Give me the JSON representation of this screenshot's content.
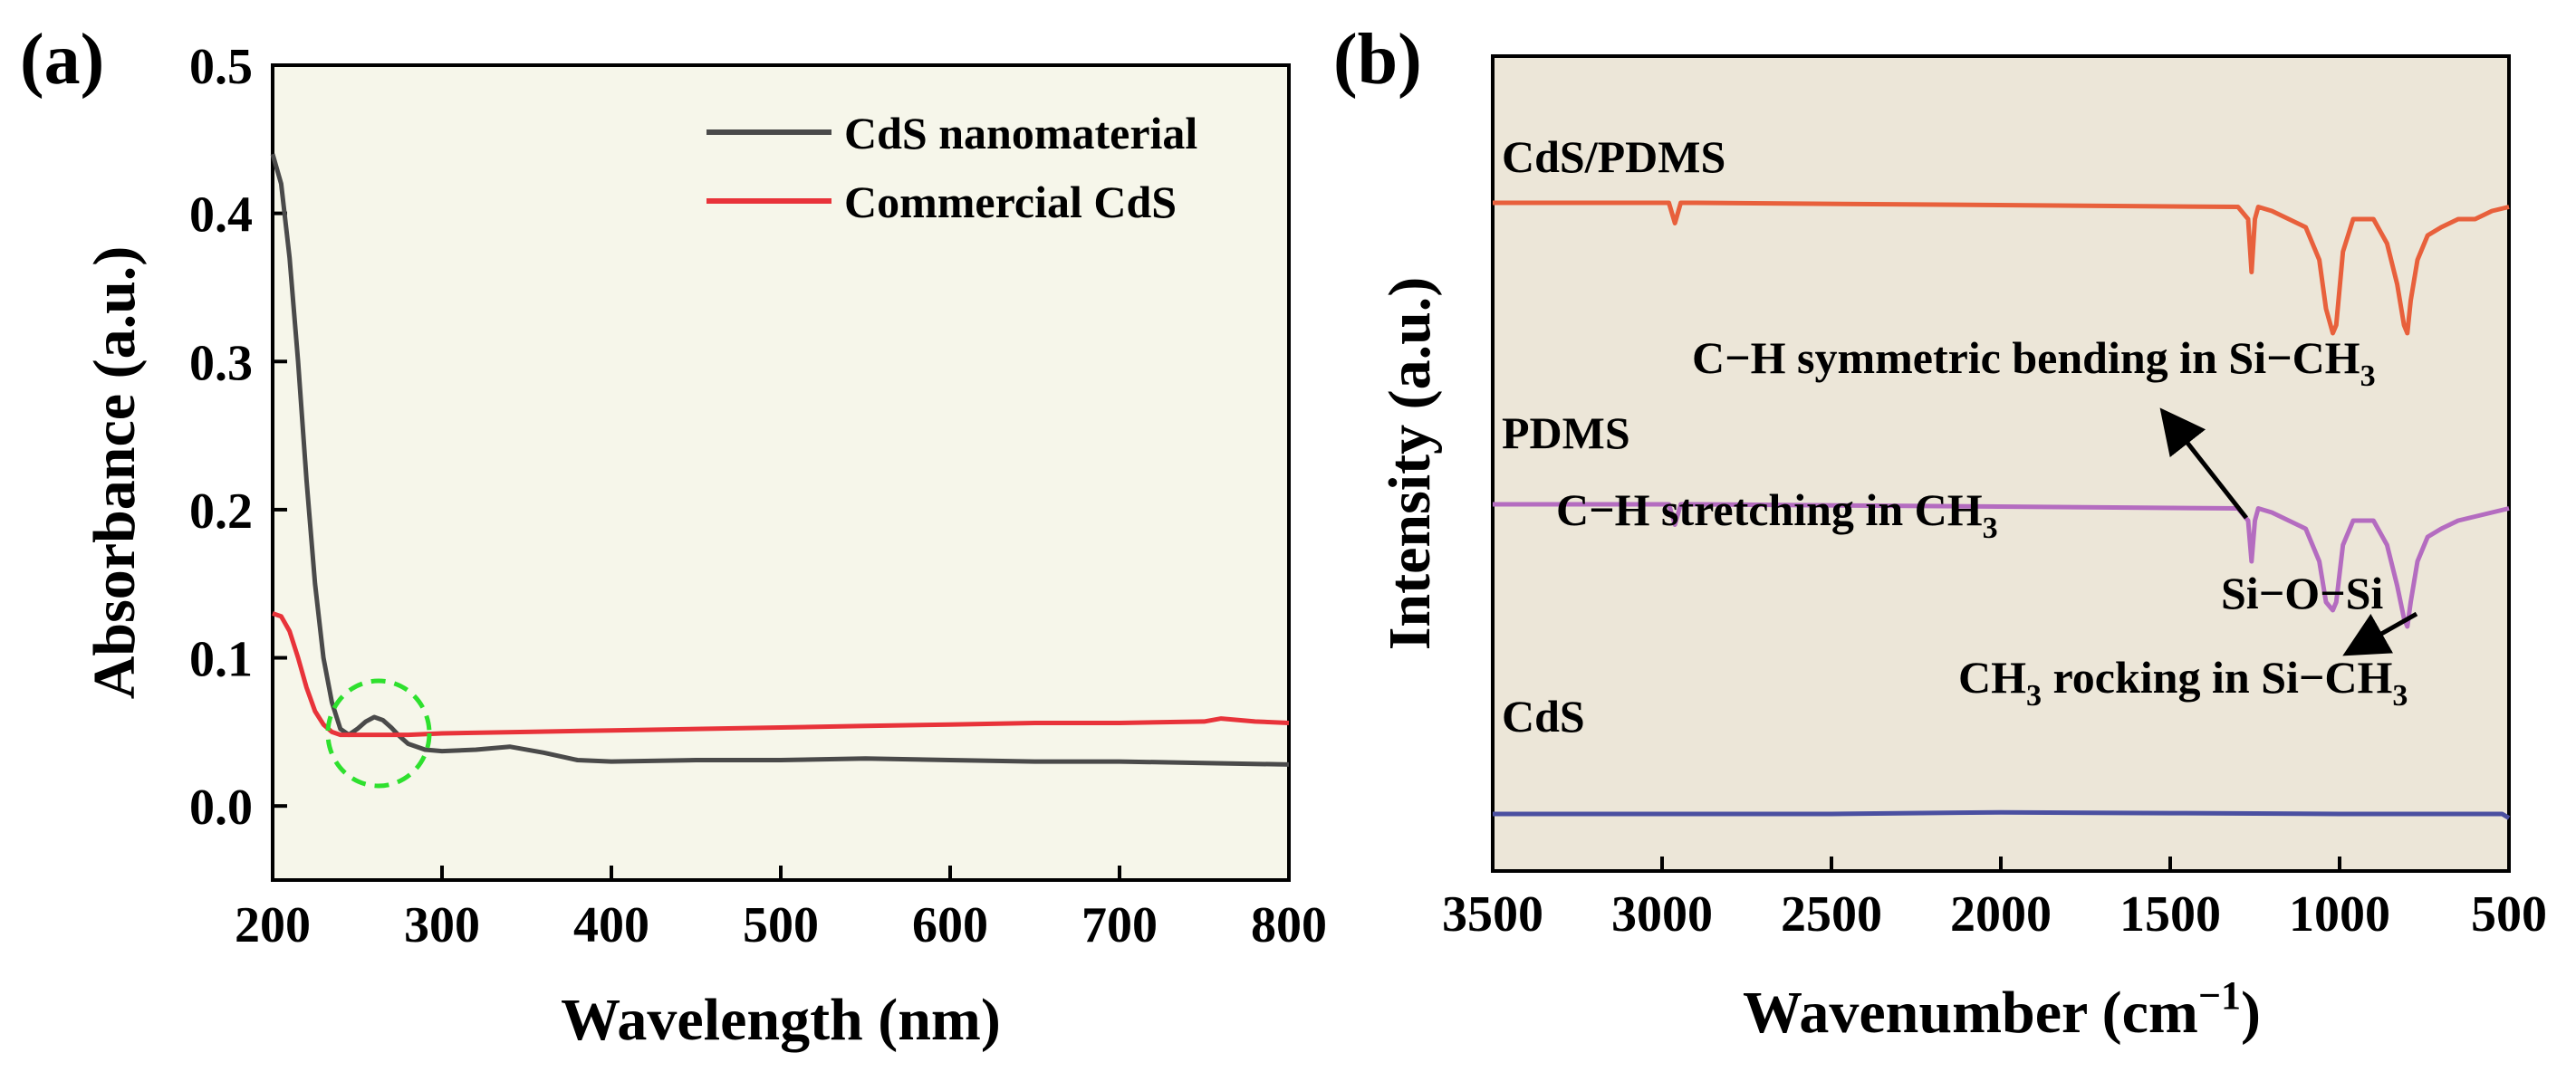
{
  "chart_data": [
    {
      "panel_label": "(a)",
      "type": "line",
      "xlabel": "Wavelength (nm)",
      "ylabel": "Absorbance (a.u.)",
      "xlim": [
        200,
        800
      ],
      "ylim": [
        -0.05,
        0.5
      ],
      "xticks": [
        200,
        300,
        400,
        500,
        600,
        700,
        800
      ],
      "yticks": [
        0.0,
        0.1,
        0.2,
        0.3,
        0.4,
        0.5
      ],
      "xtick_labels": [
        "200",
        "300",
        "400",
        "500",
        "600",
        "700",
        "800"
      ],
      "ytick_labels": [
        "0.0",
        "0.1",
        "0.2",
        "0.3",
        "0.4",
        "0.5"
      ],
      "background": "#f6f6ea",
      "legend_position": "top-right",
      "series": [
        {
          "name": "CdS nanomaterial",
          "color": "#4a4a4a",
          "x": [
            200,
            205,
            210,
            215,
            220,
            225,
            230,
            235,
            240,
            245,
            250,
            255,
            260,
            265,
            270,
            275,
            280,
            290,
            300,
            320,
            340,
            360,
            380,
            400,
            450,
            500,
            550,
            600,
            650,
            700,
            750,
            800
          ],
          "y": [
            0.44,
            0.42,
            0.37,
            0.3,
            0.22,
            0.15,
            0.1,
            0.07,
            0.052,
            0.048,
            0.052,
            0.057,
            0.06,
            0.058,
            0.053,
            0.047,
            0.042,
            0.038,
            0.037,
            0.038,
            0.04,
            0.036,
            0.031,
            0.03,
            0.031,
            0.031,
            0.032,
            0.031,
            0.03,
            0.03,
            0.029,
            0.028
          ]
        },
        {
          "name": "Commercial CdS",
          "color": "#e8333a",
          "x": [
            200,
            205,
            210,
            215,
            220,
            225,
            230,
            235,
            240,
            245,
            250,
            260,
            280,
            300,
            350,
            400,
            450,
            500,
            550,
            600,
            650,
            700,
            750,
            760,
            780,
            800
          ],
          "y": [
            0.13,
            0.128,
            0.118,
            0.1,
            0.08,
            0.064,
            0.055,
            0.05,
            0.048,
            0.048,
            0.048,
            0.048,
            0.048,
            0.049,
            0.05,
            0.051,
            0.052,
            0.053,
            0.054,
            0.055,
            0.056,
            0.056,
            0.057,
            0.059,
            0.057,
            0.056
          ]
        }
      ],
      "annotations": [
        {
          "type": "dashed-circle",
          "x": 260,
          "y": 0.05,
          "color": "#2ee02e"
        }
      ]
    },
    {
      "panel_label": "(b)",
      "type": "line",
      "xlabel_main": "Wavenumber (cm",
      "xlabel_sup": "−1",
      "xlabel_end": ")",
      "ylabel": "Intensity (a.u.)",
      "xlim": [
        3500,
        500
      ],
      "x_reversed": true,
      "xticks": [
        3500,
        3000,
        2500,
        2000,
        1500,
        1000,
        500
      ],
      "xtick_labels": [
        "3500",
        "3000",
        "2500",
        "2000",
        "1500",
        "1000",
        "500"
      ],
      "background": "#ece6d8",
      "series": [
        {
          "name": "CdS/PDMS",
          "color": "#e8603c",
          "offset": 0.82,
          "x": [
            3500,
            2980,
            2962,
            2945,
            2900,
            1300,
            1270,
            1260,
            1250,
            1240,
            1200,
            1100,
            1060,
            1040,
            1020,
            1010,
            990,
            960,
            900,
            860,
            830,
            810,
            800,
            790,
            770,
            740,
            700,
            650,
            600,
            550,
            500
          ],
          "y": [
            0,
            0,
            -0.025,
            0,
            0,
            -0.005,
            -0.02,
            -0.085,
            -0.02,
            -0.005,
            -0.01,
            -0.03,
            -0.07,
            -0.13,
            -0.16,
            -0.15,
            -0.06,
            -0.02,
            -0.02,
            -0.05,
            -0.1,
            -0.15,
            -0.16,
            -0.12,
            -0.07,
            -0.04,
            -0.03,
            -0.02,
            -0.02,
            -0.01,
            -0.005
          ]
        },
        {
          "name": "PDMS",
          "color": "#b46cc0",
          "offset": 0.45,
          "x": [
            3500,
            2980,
            2962,
            2945,
            2900,
            1300,
            1270,
            1260,
            1250,
            1240,
            1200,
            1100,
            1060,
            1040,
            1020,
            1010,
            990,
            960,
            900,
            860,
            830,
            810,
            800,
            790,
            770,
            740,
            700,
            650,
            600,
            550,
            500
          ],
          "y": [
            0,
            0,
            -0.025,
            0,
            0,
            -0.005,
            -0.02,
            -0.07,
            -0.02,
            -0.005,
            -0.01,
            -0.03,
            -0.07,
            -0.12,
            -0.13,
            -0.12,
            -0.05,
            -0.02,
            -0.02,
            -0.05,
            -0.1,
            -0.14,
            -0.15,
            -0.12,
            -0.07,
            -0.04,
            -0.03,
            -0.02,
            -0.015,
            -0.01,
            -0.005
          ]
        },
        {
          "name": "CdS",
          "color": "#4a4fa0",
          "offset": 0.07,
          "x": [
            3500,
            3000,
            2500,
            2000,
            1500,
            1000,
            520,
            500
          ],
          "y": [
            0,
            0,
            0,
            0.002,
            0.001,
            0,
            0,
            -0.005
          ]
        }
      ],
      "annotations": [
        {
          "id": "ch-sym",
          "text": "C−H symmetric bending in Si−CH",
          "sub": "3",
          "arrow_target_x": 1260
        },
        {
          "id": "ch-str",
          "text": "C−H stretching in CH",
          "sub": "3"
        },
        {
          "id": "siosi",
          "text": "Si−O−Si"
        },
        {
          "id": "rock",
          "text_pre": "CH",
          "sub": "3",
          "text_post": " rocking in Si−CH",
          "sub2": "3",
          "arrow_target_x": 1020
        }
      ]
    }
  ]
}
